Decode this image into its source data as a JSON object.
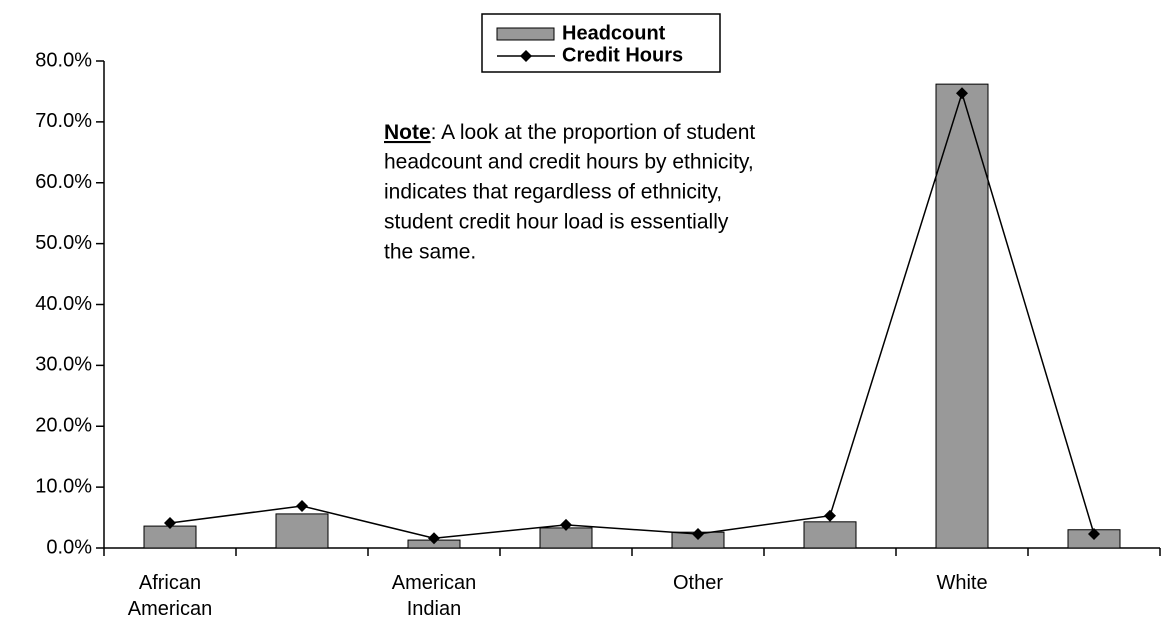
{
  "chart_data": {
    "type": "bar-line",
    "categories": [
      "African American",
      null,
      "American Indian",
      null,
      "Other",
      null,
      "White",
      null
    ],
    "series": [
      {
        "name": "Headcount",
        "type": "bar",
        "color": "#999999",
        "values": [
          3.6,
          5.6,
          1.3,
          3.3,
          2.6,
          4.3,
          76.2,
          3.0
        ]
      },
      {
        "name": "Credit Hours",
        "type": "line",
        "color": "#000000",
        "values": [
          4.1,
          6.9,
          1.6,
          3.8,
          2.3,
          5.3,
          74.7,
          2.3
        ]
      }
    ],
    "ylim": [
      0,
      80
    ],
    "yticks": [
      {
        "value": 0,
        "label": "0.0%"
      },
      {
        "value": 10,
        "label": "10.0%"
      },
      {
        "value": 20,
        "label": "20.0%"
      },
      {
        "value": 30,
        "label": "30.0%"
      },
      {
        "value": 40,
        "label": "40.0%"
      },
      {
        "value": 50,
        "label": "50.0%"
      },
      {
        "value": 60,
        "label": "60.0%"
      },
      {
        "value": 70,
        "label": "70.0%"
      },
      {
        "value": 80,
        "label": "80.0%"
      }
    ],
    "annotation": {
      "label": "Note",
      "lines": [
        ":  A look at the proportion of student",
        "headcount and credit hours by ethnicity,",
        "indicates that regardless of ethnicity,",
        "student credit hour load is essentially",
        "the same."
      ]
    },
    "legend": "top"
  }
}
